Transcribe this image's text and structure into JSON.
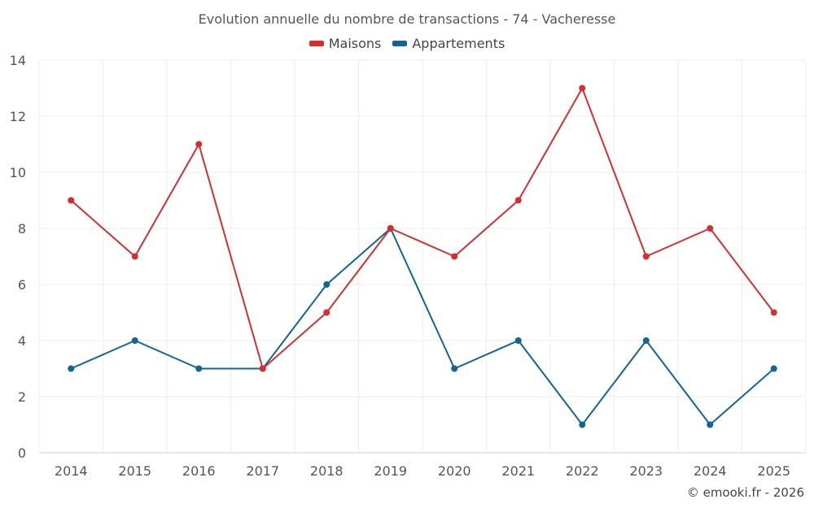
{
  "chart_data": {
    "type": "line",
    "title": "Evolution annuelle du nombre de transactions - 74 - Vacheresse",
    "categories": [
      "2014",
      "2015",
      "2016",
      "2017",
      "2018",
      "2019",
      "2020",
      "2021",
      "2022",
      "2023",
      "2024",
      "2025"
    ],
    "series": [
      {
        "name": "Maisons",
        "color": "#d32f2f",
        "values": [
          9,
          7,
          11,
          3,
          5,
          8,
          7,
          9,
          13,
          7,
          8,
          5
        ]
      },
      {
        "name": "Appartements",
        "color": "#0f6696",
        "values": [
          3,
          4,
          3,
          3,
          6,
          8,
          3,
          4,
          1,
          4,
          1,
          3
        ]
      }
    ],
    "ylim": [
      0,
      14
    ],
    "yticks": [
      0,
      2,
      4,
      6,
      8,
      10,
      12,
      14
    ],
    "grid": true,
    "legend_position": "top"
  },
  "footer": {
    "credit": "© emooki.fr - 2026"
  }
}
